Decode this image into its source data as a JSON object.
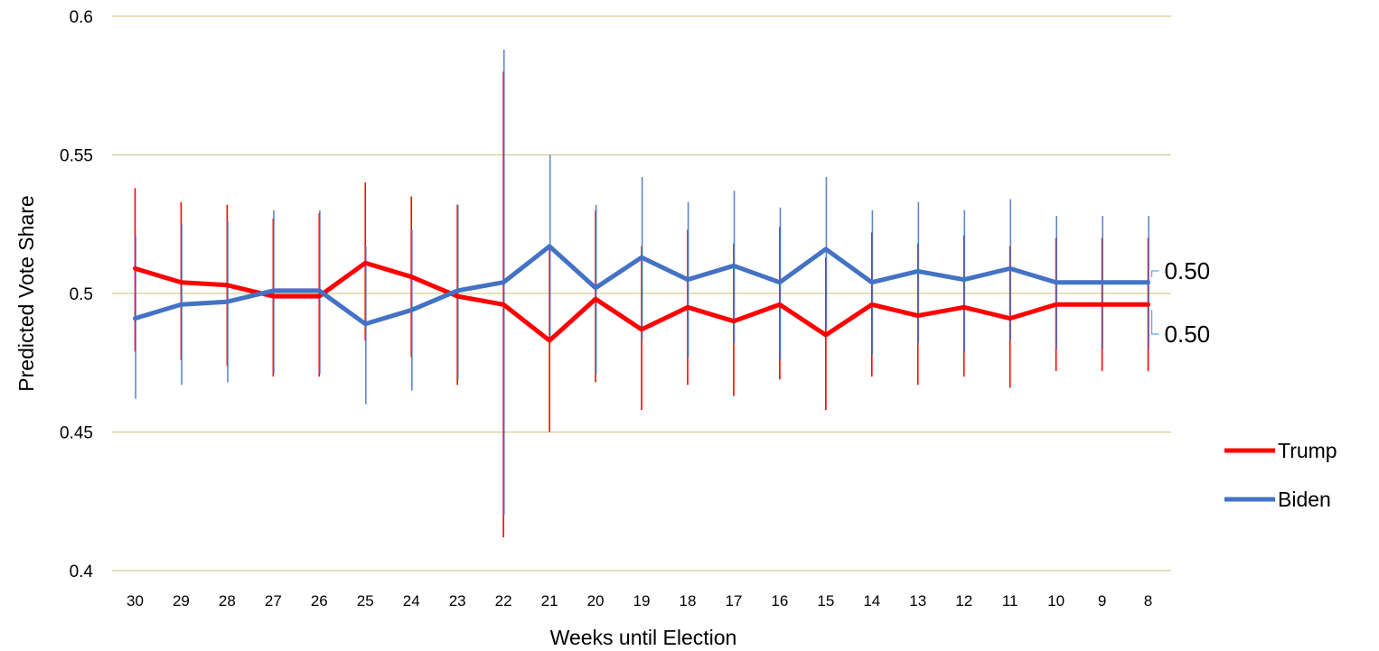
{
  "chart_data": {
    "type": "line",
    "title": "",
    "xlabel": "Weeks until Election",
    "ylabel": "Predicted Vote Share",
    "ylim": [
      0.4,
      0.6
    ],
    "y_ticks": [
      "0.4",
      "0.45",
      "0.5",
      "0.55",
      "0.6"
    ],
    "grid": true,
    "legend_position": "right",
    "categories": [
      "30",
      "29",
      "28",
      "27",
      "26",
      "25",
      "24",
      "23",
      "22",
      "21",
      "20",
      "19",
      "18",
      "17",
      "16",
      "15",
      "14",
      "13",
      "12",
      "11",
      "10",
      "9",
      "8"
    ],
    "series": [
      {
        "name": "Trump",
        "color": "#ff0000",
        "values": [
          0.509,
          0.504,
          0.503,
          0.499,
          0.499,
          0.511,
          0.506,
          0.499,
          0.496,
          0.483,
          0.498,
          0.487,
          0.495,
          0.49,
          0.496,
          0.485,
          0.496,
          0.492,
          0.495,
          0.491,
          0.496,
          0.496,
          0.496
        ],
        "error_low": [
          0.479,
          0.476,
          0.474,
          0.47,
          0.47,
          0.483,
          0.477,
          0.467,
          0.412,
          0.45,
          0.468,
          0.458,
          0.467,
          0.463,
          0.469,
          0.458,
          0.47,
          0.467,
          0.47,
          0.466,
          0.472,
          0.472,
          0.472
        ],
        "error_high": [
          0.538,
          0.533,
          0.532,
          0.527,
          0.529,
          0.54,
          0.535,
          0.532,
          0.58,
          0.517,
          0.53,
          0.517,
          0.523,
          0.518,
          0.524,
          0.513,
          0.522,
          0.518,
          0.521,
          0.517,
          0.52,
          0.52,
          0.52
        ],
        "end_label": "0.50"
      },
      {
        "name": "Biden",
        "color": "#4472c4",
        "values": [
          0.491,
          0.496,
          0.497,
          0.501,
          0.501,
          0.489,
          0.494,
          0.501,
          0.504,
          0.517,
          0.502,
          0.513,
          0.505,
          0.51,
          0.504,
          0.516,
          0.504,
          0.508,
          0.505,
          0.509,
          0.504,
          0.504,
          0.504
        ],
        "error_low": [
          0.462,
          0.467,
          0.468,
          0.471,
          0.471,
          0.46,
          0.465,
          0.469,
          0.42,
          0.483,
          0.471,
          0.483,
          0.477,
          0.482,
          0.476,
          0.487,
          0.478,
          0.482,
          0.479,
          0.483,
          0.48,
          0.48,
          0.48
        ],
        "error_high": [
          0.521,
          0.525,
          0.526,
          0.53,
          0.53,
          0.517,
          0.523,
          0.532,
          0.588,
          0.55,
          0.532,
          0.542,
          0.533,
          0.537,
          0.531,
          0.542,
          0.53,
          0.533,
          0.53,
          0.534,
          0.528,
          0.528,
          0.528
        ],
        "end_label": "0.50"
      }
    ]
  }
}
